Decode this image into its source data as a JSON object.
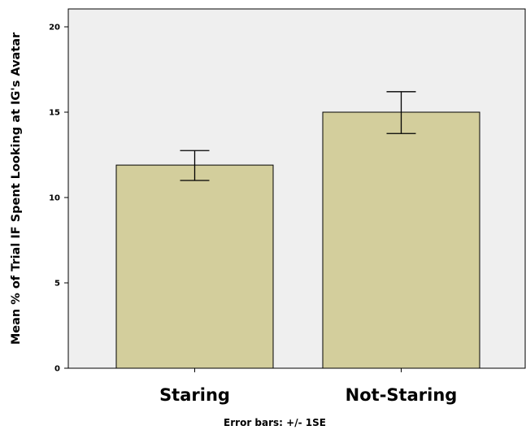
{
  "chart_data": {
    "type": "bar",
    "categories": [
      "Staring",
      "Not-Staring"
    ],
    "values": [
      11.9,
      15.0
    ],
    "error_low": [
      11.0,
      13.75
    ],
    "error_high": [
      12.75,
      16.2
    ],
    "ylabel": "Mean % of Trial IF Spent Looking at IG's Avatar",
    "xlabel": "",
    "ylim": [
      0,
      21
    ],
    "yticks": [
      0,
      5,
      10,
      15,
      20
    ],
    "ytick_labels": [
      "0",
      "5",
      "10",
      "15",
      "20"
    ],
    "footnote": "Error bars: +/- 1SE",
    "grid": false,
    "colors": {
      "bar_fill": "#D3CE9C",
      "plot_background": "#EFEFEF",
      "stroke": "#000000"
    }
  }
}
